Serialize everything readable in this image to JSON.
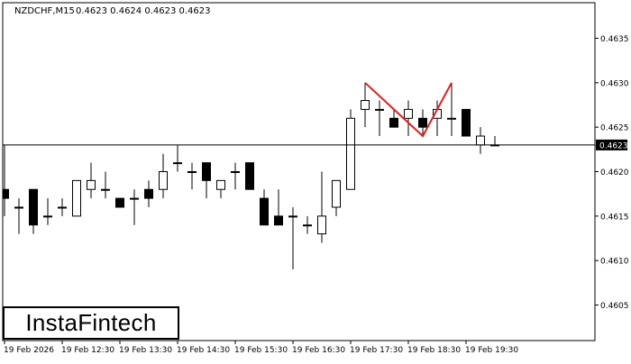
{
  "header": {
    "symbol": "NZDCHF,M15",
    "ohlc": "0.4623 0.4624 0.4623 0.4623"
  },
  "logo": {
    "text": "InstaFintech"
  },
  "colors": {
    "background": "#ffffff",
    "bull_body": "#ffffff",
    "bear_body": "#000000",
    "candle_outline": "#000000",
    "pattern_line": "#e31b1b",
    "price_line": "#000000",
    "price_tag_bg": "#000000",
    "price_tag_text": "#ffffff"
  },
  "chart_data": {
    "type": "candlestick",
    "ylim": [
      0.4601,
      0.4639
    ],
    "y_ticks": [
      "0.4605",
      "0.4610",
      "0.4615",
      "0.4620",
      "0.4625",
      "0.4630",
      "0.4635"
    ],
    "x_ticks": [
      "19 Feb 2026",
      "19 Feb 12:30",
      "19 Feb 13:30",
      "19 Feb 14:30",
      "19 Feb 15:30",
      "19 Feb 16:30",
      "19 Feb 17:30",
      "19 Feb 18:30",
      "19 Feb 19:30"
    ],
    "current_price": "0.4623",
    "candles": [
      {
        "o": 0.4618,
        "h": 0.4623,
        "l": 0.4615,
        "c": 0.4617
      },
      {
        "o": 0.4616,
        "h": 0.4617,
        "l": 0.4613,
        "c": 0.4616
      },
      {
        "o": 0.4618,
        "h": 0.4618,
        "l": 0.4613,
        "c": 0.4614
      },
      {
        "o": 0.4615,
        "h": 0.4617,
        "l": 0.4614,
        "c": 0.4615
      },
      {
        "o": 0.4616,
        "h": 0.4617,
        "l": 0.4615,
        "c": 0.4616
      },
      {
        "o": 0.4615,
        "h": 0.4619,
        "l": 0.4615,
        "c": 0.4619
      },
      {
        "o": 0.4618,
        "h": 0.4621,
        "l": 0.4617,
        "c": 0.4619
      },
      {
        "o": 0.4618,
        "h": 0.462,
        "l": 0.4617,
        "c": 0.4618
      },
      {
        "o": 0.4617,
        "h": 0.4617,
        "l": 0.4616,
        "c": 0.4616
      },
      {
        "o": 0.4617,
        "h": 0.4618,
        "l": 0.4614,
        "c": 0.4617
      },
      {
        "o": 0.4618,
        "h": 0.4619,
        "l": 0.4616,
        "c": 0.4617
      },
      {
        "o": 0.4618,
        "h": 0.4622,
        "l": 0.4617,
        "c": 0.462
      },
      {
        "o": 0.4621,
        "h": 0.4623,
        "l": 0.462,
        "c": 0.4621
      },
      {
        "o": 0.462,
        "h": 0.4621,
        "l": 0.4618,
        "c": 0.462
      },
      {
        "o": 0.4621,
        "h": 0.4621,
        "l": 0.4617,
        "c": 0.4619
      },
      {
        "o": 0.4618,
        "h": 0.4619,
        "l": 0.4617,
        "c": 0.4619
      },
      {
        "o": 0.462,
        "h": 0.4621,
        "l": 0.4618,
        "c": 0.462
      },
      {
        "o": 0.4621,
        "h": 0.4621,
        "l": 0.4618,
        "c": 0.4618
      },
      {
        "o": 0.4617,
        "h": 0.4618,
        "l": 0.4614,
        "c": 0.4614
      },
      {
        "o": 0.4615,
        "h": 0.4618,
        "l": 0.4614,
        "c": 0.4614
      },
      {
        "o": 0.4615,
        "h": 0.4616,
        "l": 0.4609,
        "c": 0.4615
      },
      {
        "o": 0.4614,
        "h": 0.4615,
        "l": 0.4613,
        "c": 0.4614
      },
      {
        "o": 0.4613,
        "h": 0.462,
        "l": 0.4612,
        "c": 0.4615
      },
      {
        "o": 0.4616,
        "h": 0.4619,
        "l": 0.4615,
        "c": 0.4619
      },
      {
        "o": 0.4618,
        "h": 0.4627,
        "l": 0.4618,
        "c": 0.4626
      },
      {
        "o": 0.4627,
        "h": 0.463,
        "l": 0.4625,
        "c": 0.4628
      },
      {
        "o": 0.4627,
        "h": 0.4628,
        "l": 0.4624,
        "c": 0.4627
      },
      {
        "o": 0.4626,
        "h": 0.4627,
        "l": 0.4625,
        "c": 0.4625
      },
      {
        "o": 0.4626,
        "h": 0.4628,
        "l": 0.4624,
        "c": 0.4627
      },
      {
        "o": 0.4626,
        "h": 0.4627,
        "l": 0.4624,
        "c": 0.4625
      },
      {
        "o": 0.4626,
        "h": 0.4628,
        "l": 0.4624,
        "c": 0.4627
      },
      {
        "o": 0.4626,
        "h": 0.463,
        "l": 0.4624,
        "c": 0.4626
      },
      {
        "o": 0.4627,
        "h": 0.4627,
        "l": 0.4624,
        "c": 0.4624
      },
      {
        "o": 0.4623,
        "h": 0.4625,
        "l": 0.4622,
        "c": 0.4624
      },
      {
        "o": 0.4623,
        "h": 0.4624,
        "l": 0.4623,
        "c": 0.4623
      }
    ],
    "pattern": {
      "name": "double top",
      "points": [
        {
          "candle": 25,
          "price": 0.463
        },
        {
          "candle": 29,
          "price": 0.4624
        },
        {
          "candle": 31,
          "price": 0.463
        }
      ]
    }
  }
}
